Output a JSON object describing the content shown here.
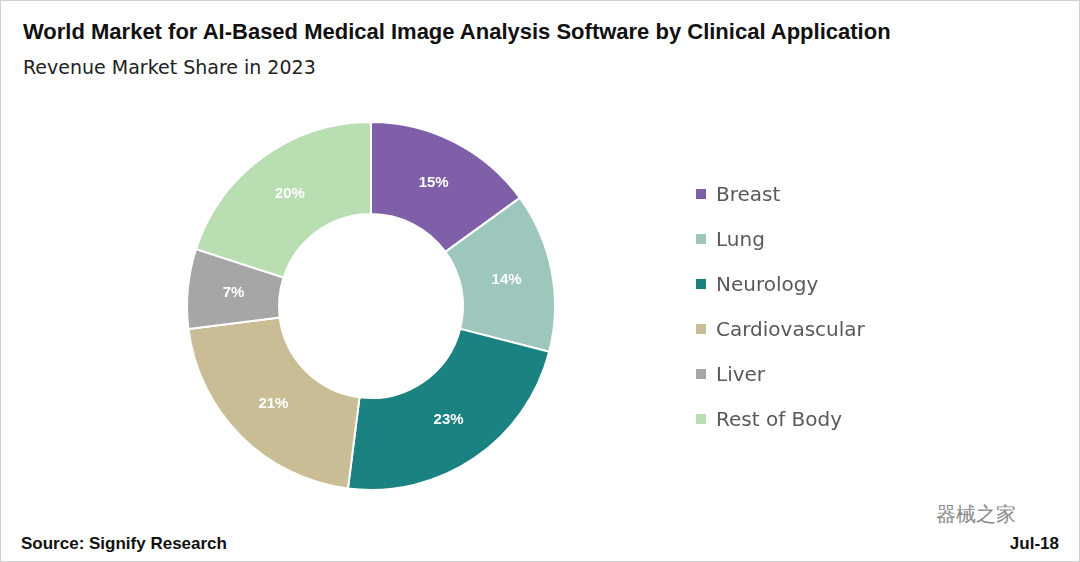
{
  "chart_data": {
    "type": "doughnut",
    "title": "World Market for AI-Based Medical Image Analysis Software by Clinical Application",
    "subtitle": "Revenue Market Share in 2023",
    "categories": [
      "Breast",
      "Lung",
      "Neurology",
      "Cardiovascular",
      "Liver",
      "Rest of Body"
    ],
    "values": [
      15,
      14,
      23,
      21,
      7,
      20
    ],
    "value_labels": [
      "15%",
      "14%",
      "23%",
      "21%",
      "7%",
      "20%"
    ],
    "colors": [
      "#7f5fa8",
      "#9dc7bc",
      "#1b8282",
      "#c9bd96",
      "#a6a6a6",
      "#b8deb2"
    ],
    "data_labels": true,
    "legend": "right",
    "annotations": [
      "Source: Signify Research",
      "Jul-18",
      "器械之家"
    ]
  }
}
